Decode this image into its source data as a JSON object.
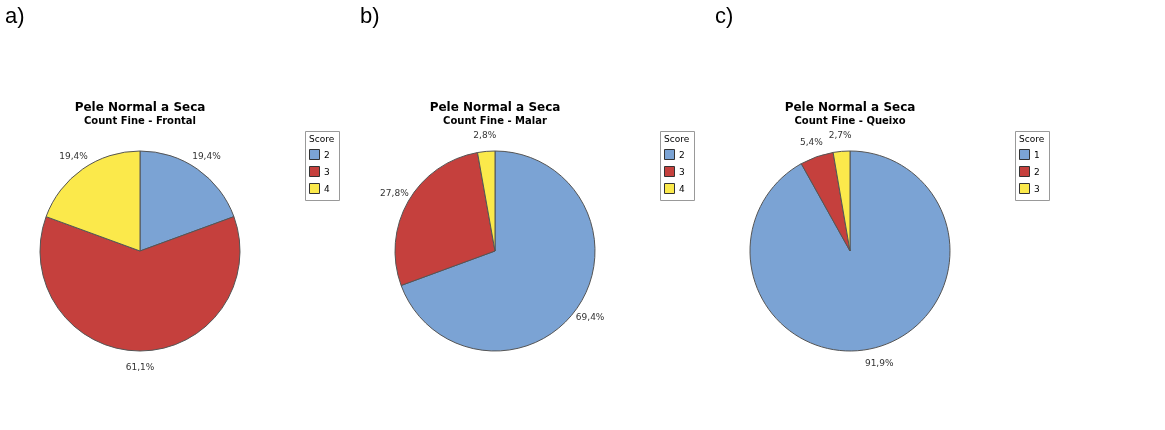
{
  "chart_data": [
    {
      "type": "pie",
      "title": "Pele Normal a Seca",
      "subtitle": "Count Fine - Frontal",
      "legend_title": "Score",
      "legend": "right",
      "annotations": [
        "a)"
      ],
      "categories": [
        "2",
        "3",
        "4"
      ],
      "values": [
        19.4,
        61.1,
        19.4
      ],
      "value_labels": [
        "19,4%",
        "61,1%",
        "19,4%"
      ],
      "colors": [
        "#7ba3d4",
        "#c5403d",
        "#fbe94b"
      ]
    },
    {
      "type": "pie",
      "title": "Pele Normal a Seca",
      "subtitle": "Count Fine - Malar",
      "legend_title": "Score",
      "legend": "right",
      "annotations": [
        "b)"
      ],
      "categories": [
        "2",
        "3",
        "4"
      ],
      "values": [
        69.4,
        27.8,
        2.8
      ],
      "value_labels": [
        "69,4%",
        "27,8%",
        "2,8%"
      ],
      "colors": [
        "#7ba3d4",
        "#c5403d",
        "#fbe94b"
      ]
    },
    {
      "type": "pie",
      "title": "Pele Normal a Seca",
      "subtitle": "Count Fine - Queixo",
      "legend_title": "Score",
      "legend": "right",
      "annotations": [
        "c)"
      ],
      "categories": [
        "1",
        "2",
        "3"
      ],
      "values": [
        91.9,
        5.4,
        2.7
      ],
      "value_labels": [
        "91,9%",
        "5,4%",
        "2,7%"
      ],
      "colors": [
        "#7ba3d4",
        "#c5403d",
        "#fbe94b"
      ]
    }
  ]
}
